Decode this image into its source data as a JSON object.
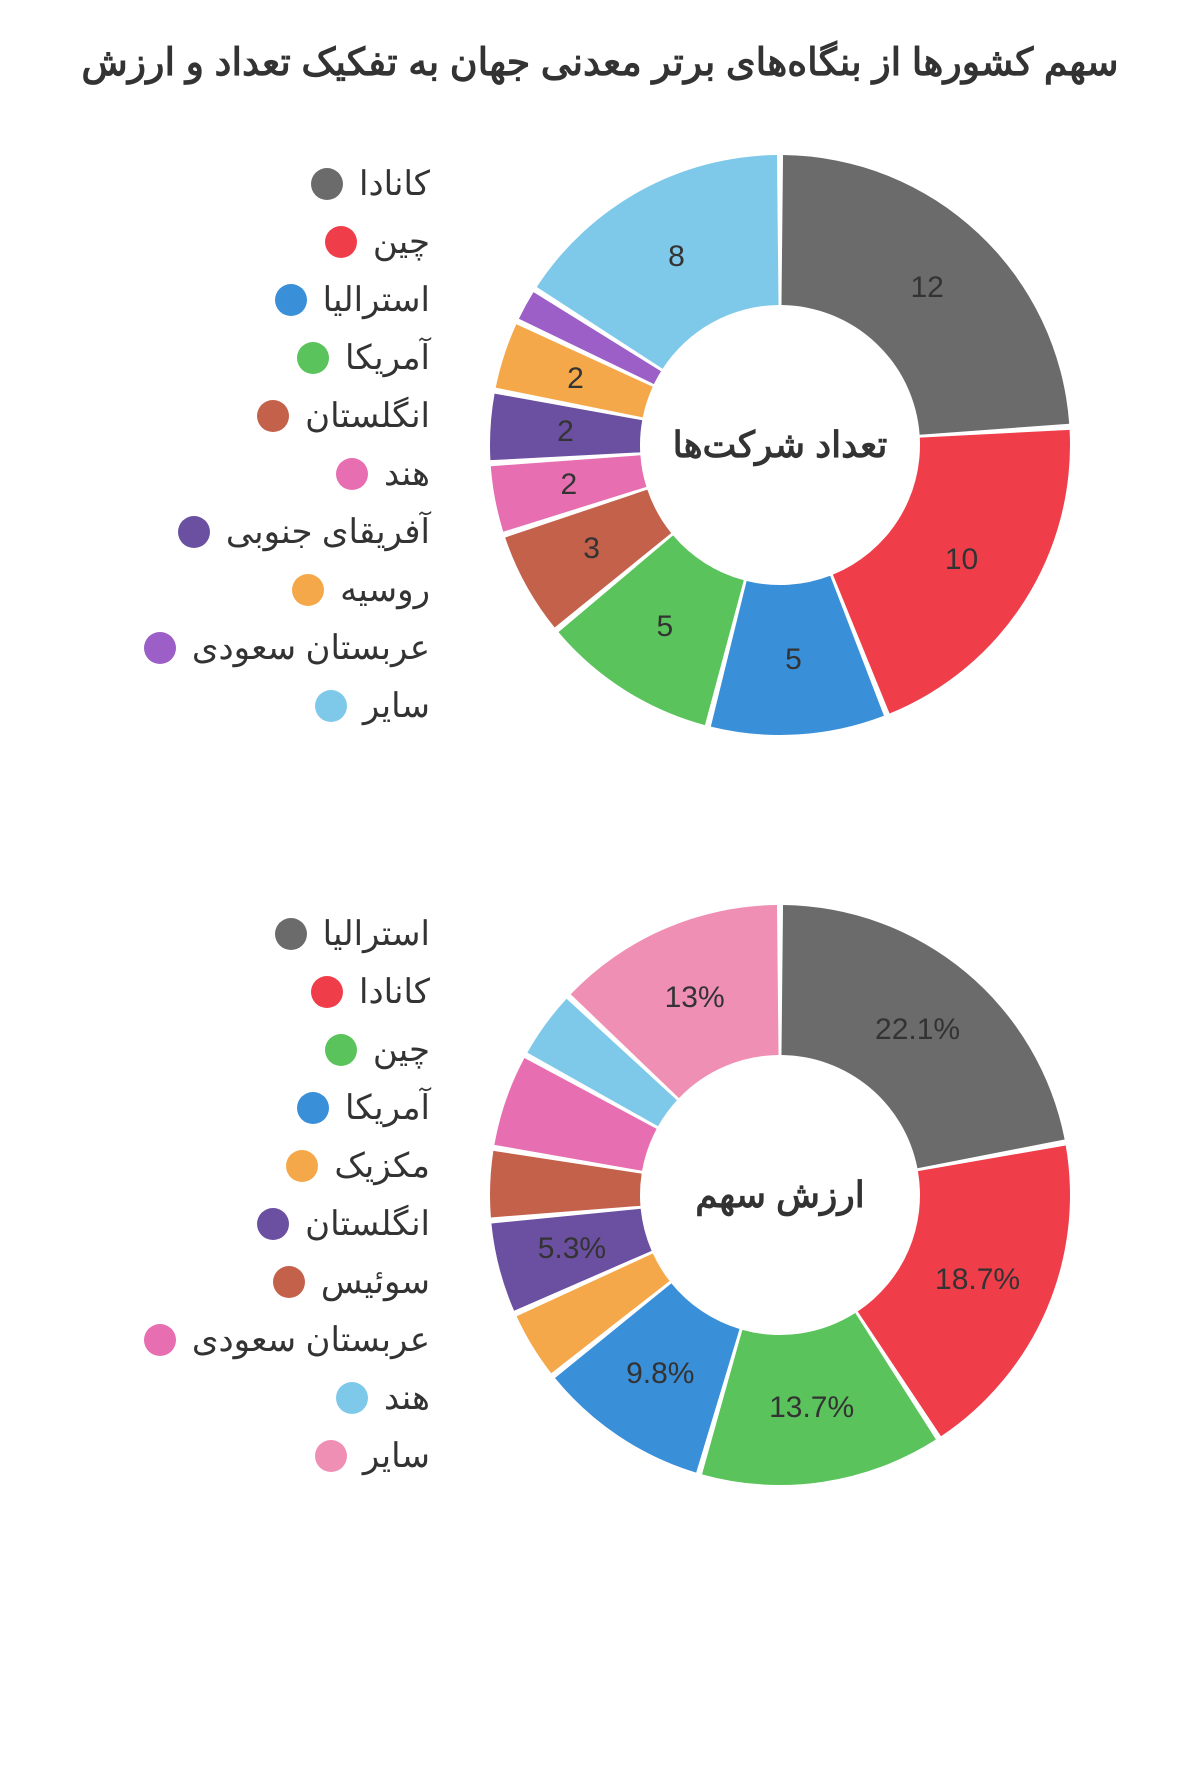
{
  "title": "سهم کشورها از بنگاه‌های برتر معدنی جهان به تفکیک تعداد و ارزش",
  "title_color": "#333333",
  "title_fontsize": 38,
  "background_color": "#ffffff",
  "chart1": {
    "type": "donut",
    "center_label": "تعداد شرکت‌ها",
    "outer_radius": 290,
    "inner_radius": 140,
    "gap_deg": 1.2,
    "label_fontsize": 30,
    "center_fontsize": 36,
    "start_angle": -90,
    "slices": [
      {
        "name": "کانادا",
        "value": 12,
        "label": "12",
        "color": "#6b6b6b"
      },
      {
        "name": "چین",
        "value": 10,
        "label": "10",
        "color": "#ef3e4a"
      },
      {
        "name": "استرالیا",
        "value": 5,
        "label": "5",
        "color": "#3a8fd9"
      },
      {
        "name": "آمریکا",
        "value": 5,
        "label": "5",
        "color": "#5bc35b"
      },
      {
        "name": "انگلستان",
        "value": 3,
        "label": "3",
        "color": "#c4614b"
      },
      {
        "name": "هند",
        "value": 2,
        "label": "2",
        "color": "#e76fb1"
      },
      {
        "name": "آفریقای جنوبی",
        "value": 2,
        "label": "2",
        "color": "#6b4fa0"
      },
      {
        "name": "روسیه",
        "value": 2,
        "label": "2",
        "color": "#f5a84a"
      },
      {
        "name": "عربستان سعودی",
        "value": 1,
        "label": "",
        "color": "#9b5fc7"
      },
      {
        "name": "سایر",
        "value": 8,
        "label": "8",
        "color": "#7ec9ea"
      }
    ]
  },
  "chart2": {
    "type": "donut",
    "center_label": "ارزش سهم",
    "outer_radius": 290,
    "inner_radius": 140,
    "gap_deg": 1.2,
    "label_fontsize": 30,
    "center_fontsize": 36,
    "start_angle": -90,
    "slices": [
      {
        "name": "استرالیا",
        "value": 22.1,
        "label": "22.1%",
        "color": "#6b6b6b"
      },
      {
        "name": "کانادا",
        "value": 18.7,
        "label": "18.7%",
        "color": "#ef3e4a"
      },
      {
        "name": "چین",
        "value": 13.7,
        "label": "13.7%",
        "color": "#5bc35b"
      },
      {
        "name": "آمریکا",
        "value": 9.8,
        "label": "9.8%",
        "color": "#3a8fd9"
      },
      {
        "name": "مکزیک",
        "value": 4.0,
        "label": "",
        "color": "#f5a84a"
      },
      {
        "name": "انگلستان",
        "value": 5.3,
        "label": "5.3%",
        "color": "#6b4fa0"
      },
      {
        "name": "سوئیس",
        "value": 4.0,
        "label": "",
        "color": "#c4614b"
      },
      {
        "name": "عربستان سعودی",
        "value": 5.4,
        "label": "",
        "color": "#e76fb1"
      },
      {
        "name": "هند",
        "value": 4.0,
        "label": "",
        "color": "#7ec9ea"
      },
      {
        "name": "سایر",
        "value": 13.0,
        "label": "13%",
        "color": "#f08fb4"
      }
    ]
  },
  "legend_fontsize": 34,
  "legend_dot_size": 32
}
